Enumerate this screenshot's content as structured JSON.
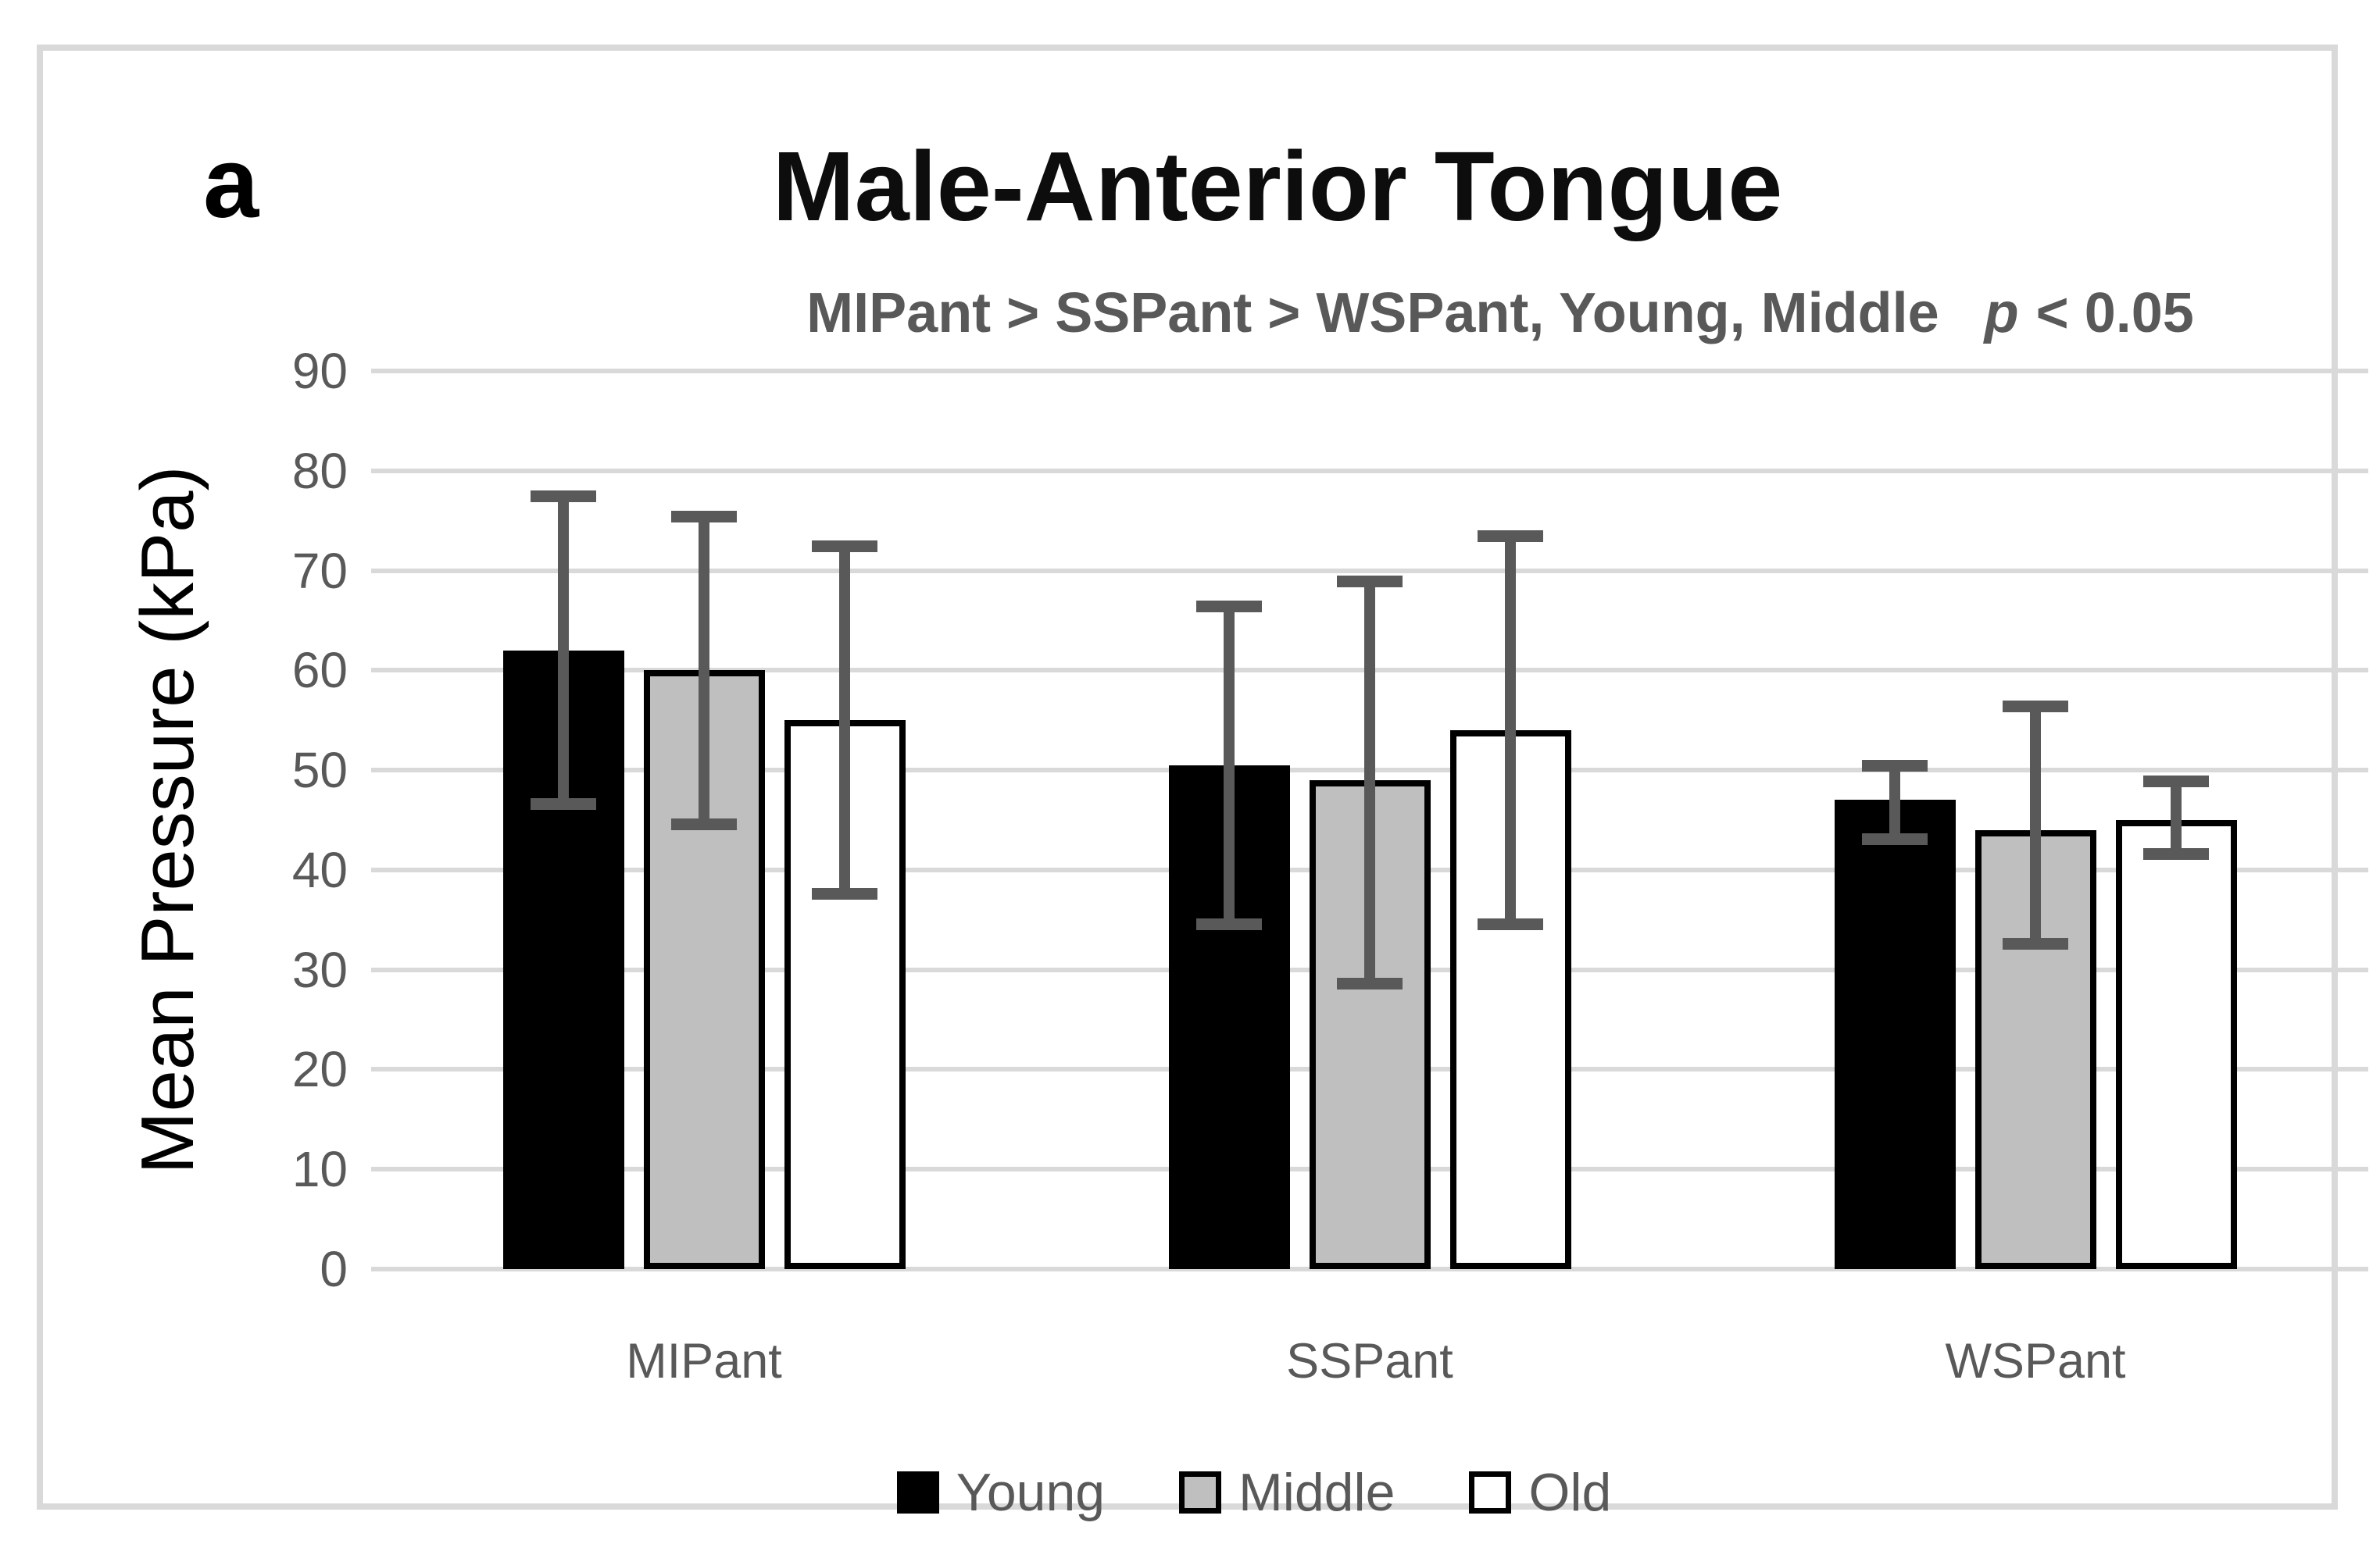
{
  "figure": {
    "panel_label": "a",
    "title": "Male-Anterior Tongue",
    "subtitle_main": "MIPant > SSPant > WSPant, Young, Middle",
    "subtitle_p_symbol": "p",
    "subtitle_p_value": "< 0.05"
  },
  "colors": {
    "frame_border": "#d9d9d9",
    "gridline": "#d9d9d9",
    "axis_text": "#595959",
    "subtitle_text": "#595959",
    "title_text": "#0d0d0d",
    "error_bar": "#595959",
    "young_fill": "#000000",
    "middle_fill": "#bfbfbf",
    "old_fill": "#ffffff",
    "bar_border": "#000000"
  },
  "chart_data": {
    "type": "bar",
    "title": "Male-Anterior Tongue",
    "annotation": "MIPant > SSPant > WSPant, Young, Middle p < 0.05",
    "xlabel": "",
    "ylabel": "Mean Pressure (kPa)",
    "ylim": [
      0,
      90
    ],
    "yticks": [
      0,
      10,
      20,
      30,
      40,
      50,
      60,
      70,
      80,
      90
    ],
    "grid": true,
    "legend_position": "bottom",
    "categories": [
      "MIPant",
      "SSPant",
      "WSPant"
    ],
    "series": [
      {
        "name": "Young",
        "fill": "#000000",
        "border": "#000000",
        "values": [
          62,
          50.5,
          47
        ],
        "err_low": [
          46,
          34,
          42.5
        ],
        "err_high": [
          78,
          67,
          51
        ]
      },
      {
        "name": "Middle",
        "fill": "#bfbfbf",
        "border": "#000000",
        "values": [
          60,
          49,
          44
        ],
        "err_low": [
          44,
          28,
          32
        ],
        "err_high": [
          76,
          69.5,
          57
        ]
      },
      {
        "name": "Old",
        "fill": "#ffffff",
        "border": "#000000",
        "values": [
          55,
          54,
          45
        ],
        "err_low": [
          37,
          34,
          41
        ],
        "err_high": [
          73,
          74,
          49.5
        ]
      }
    ]
  }
}
